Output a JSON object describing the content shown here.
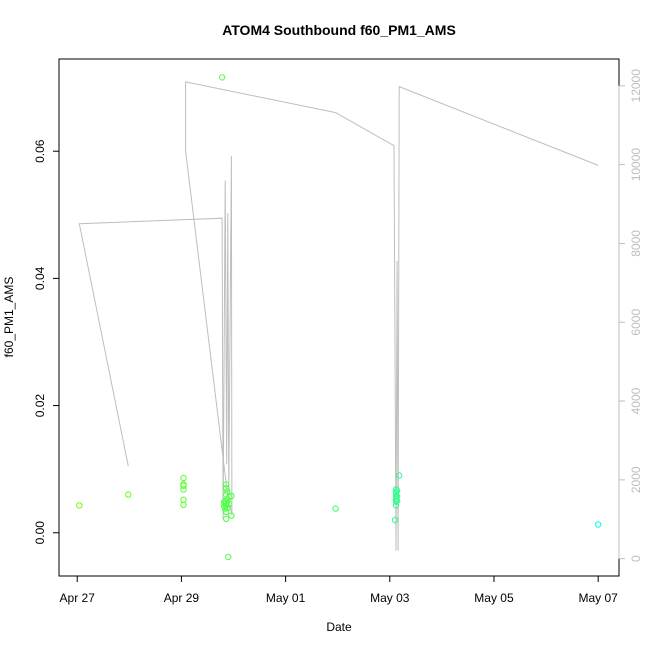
{
  "chart_data": {
    "type": "scatter",
    "title": "ATOM4 Southbound f60_PM1_AMS",
    "xlabel": "Date",
    "ylabel": "f60_PM1_AMS",
    "x_ticks": [
      "Apr 27",
      "Apr 29",
      "May 01",
      "May 03",
      "May 05",
      "May 07"
    ],
    "x_tick_days": [
      0,
      2,
      4,
      6,
      8,
      10
    ],
    "xlim": [
      -0.35,
      10.4
    ],
    "ylim": [
      -0.0068,
      0.0745
    ],
    "y_ticks": [
      "0.00",
      "0.02",
      "0.04",
      "0.06"
    ],
    "y_tick_values": [
      0,
      0.02,
      0.04,
      0.06
    ],
    "y2_ticks": [
      "0",
      "2000",
      "4000",
      "6000",
      "8000",
      "10000",
      "12000"
    ],
    "y2_tick_values": [
      0,
      2000,
      4000,
      6000,
      8000,
      10000,
      12000
    ],
    "y2lim": [
      -440,
      12680
    ],
    "grid": false,
    "legend": "none",
    "colors": {
      "points_start": "#6cff00",
      "points_end": "#00ffe6",
      "line": "#bebebe",
      "axis": "#000000"
    },
    "points": [
      [
        0.04,
        0.0043
      ],
      [
        0.98,
        0.006
      ],
      [
        2.04,
        0.0086
      ],
      [
        2.04,
        0.0076
      ],
      [
        2.04,
        0.0074
      ],
      [
        2.04,
        0.0068
      ],
      [
        2.04,
        0.0052
      ],
      [
        2.04,
        0.0044
      ],
      [
        2.78,
        0.0716
      ],
      [
        2.82,
        0.0048
      ],
      [
        2.82,
        0.0042
      ],
      [
        2.84,
        0.005
      ],
      [
        2.84,
        0.0038
      ],
      [
        2.86,
        0.0076
      ],
      [
        2.86,
        0.007
      ],
      [
        2.86,
        0.006
      ],
      [
        2.86,
        0.0047
      ],
      [
        2.86,
        0.0043
      ],
      [
        2.86,
        0.0033
      ],
      [
        2.86,
        0.0022
      ],
      [
        2.88,
        0.0065
      ],
      [
        2.88,
        0.0052
      ],
      [
        2.88,
        0.0039
      ],
      [
        2.9,
        -0.0038
      ],
      [
        2.92,
        0.0056
      ],
      [
        2.92,
        0.0045
      ],
      [
        2.96,
        0.0058
      ],
      [
        2.96,
        0.0027
      ],
      [
        4.96,
        0.0038
      ],
      [
        6.1,
        0.002
      ],
      [
        6.12,
        0.0068
      ],
      [
        6.12,
        0.0063
      ],
      [
        6.12,
        0.0058
      ],
      [
        6.12,
        0.0053
      ],
      [
        6.12,
        0.0049
      ],
      [
        6.12,
        0.0043
      ],
      [
        6.14,
        0.0066
      ],
      [
        6.14,
        0.0057
      ],
      [
        6.14,
        0.005
      ],
      [
        6.18,
        0.009
      ],
      [
        10.0,
        0.0013
      ]
    ],
    "line_series": [
      [
        0.04,
        8500
      ],
      [
        0.98,
        2350
      ],
      [
        0.04,
        8500
      ],
      [
        2.78,
        8640
      ],
      [
        2.8,
        1000
      ],
      [
        2.84,
        9600
      ],
      [
        2.87,
        2400
      ],
      [
        2.89,
        8770
      ],
      [
        2.91,
        1700
      ],
      [
        2.96,
        10220
      ],
      [
        2.97,
        1100
      ],
      [
        2.87,
        1800
      ],
      [
        2.08,
        10340
      ],
      [
        2.08,
        12100
      ],
      [
        4.96,
        11320
      ],
      [
        6.08,
        10480
      ],
      [
        6.12,
        200
      ],
      [
        6.14,
        7560
      ],
      [
        6.16,
        200
      ],
      [
        6.18,
        11980
      ],
      [
        10.0,
        9980
      ]
    ]
  }
}
